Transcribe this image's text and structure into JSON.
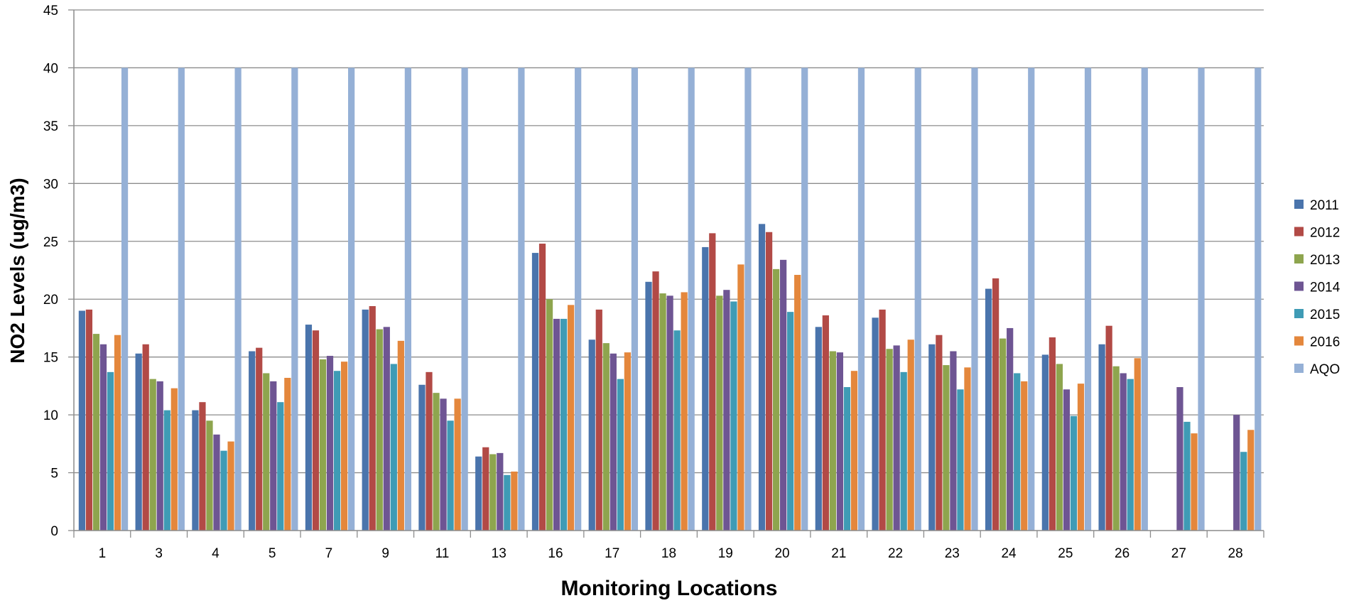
{
  "chart_data": {
    "type": "bar",
    "title": "",
    "xlabel": "Monitoring Locations",
    "ylabel": "NO2 Levels  (ug/m3)",
    "ylim": [
      0,
      45
    ],
    "yticks": [
      0,
      5,
      10,
      15,
      20,
      25,
      30,
      35,
      40,
      45
    ],
    "grid": "horizontal",
    "legend_position": "right",
    "categories": [
      "1",
      "3",
      "4",
      "5",
      "7",
      "9",
      "11",
      "13",
      "16",
      "17",
      "18",
      "19",
      "20",
      "21",
      "22",
      "23",
      "24",
      "25",
      "26",
      "27",
      "28"
    ],
    "series": [
      {
        "name": "2011",
        "color": "#4a74ac",
        "values": [
          19.0,
          15.3,
          10.4,
          15.5,
          17.8,
          19.1,
          12.6,
          6.4,
          24.0,
          16.5,
          21.5,
          24.5,
          26.5,
          17.6,
          18.4,
          16.1,
          20.9,
          15.2,
          16.1,
          null,
          null
        ]
      },
      {
        "name": "2012",
        "color": "#b24a46",
        "values": [
          19.1,
          16.1,
          11.1,
          15.8,
          17.3,
          19.4,
          13.7,
          7.2,
          24.8,
          19.1,
          22.4,
          25.7,
          25.8,
          18.6,
          19.1,
          16.9,
          21.8,
          16.7,
          17.7,
          null,
          null
        ]
      },
      {
        "name": "2013",
        "color": "#8ea54e",
        "values": [
          17.0,
          13.1,
          9.5,
          13.6,
          14.8,
          17.4,
          11.9,
          6.6,
          20.0,
          16.2,
          20.5,
          20.3,
          22.6,
          15.5,
          15.7,
          14.3,
          16.6,
          14.4,
          14.2,
          null,
          null
        ]
      },
      {
        "name": "2014",
        "color": "#6e5593",
        "values": [
          16.1,
          12.9,
          8.3,
          12.9,
          15.1,
          17.6,
          11.4,
          6.7,
          18.3,
          15.3,
          20.3,
          20.8,
          23.4,
          15.4,
          16.0,
          15.5,
          17.5,
          12.2,
          13.6,
          12.4,
          10.0
        ]
      },
      {
        "name": "2015",
        "color": "#3f9bb5",
        "values": [
          13.7,
          10.4,
          6.9,
          11.1,
          13.8,
          14.4,
          9.5,
          4.8,
          18.3,
          13.1,
          17.3,
          19.8,
          18.9,
          12.4,
          13.7,
          12.2,
          13.6,
          9.9,
          13.1,
          9.4,
          6.8
        ]
      },
      {
        "name": "2016",
        "color": "#e4873c",
        "values": [
          16.9,
          12.3,
          7.7,
          13.2,
          14.6,
          16.4,
          11.4,
          5.1,
          19.5,
          15.4,
          20.6,
          23.0,
          22.1,
          13.8,
          16.5,
          14.1,
          12.9,
          12.7,
          14.9,
          8.4,
          8.7
        ]
      },
      {
        "name": "AQO",
        "color": "#95b0d6",
        "values": [
          40,
          40,
          40,
          40,
          40,
          40,
          40,
          40,
          40,
          40,
          40,
          40,
          40,
          40,
          40,
          40,
          40,
          40,
          40,
          40,
          40
        ]
      }
    ]
  }
}
